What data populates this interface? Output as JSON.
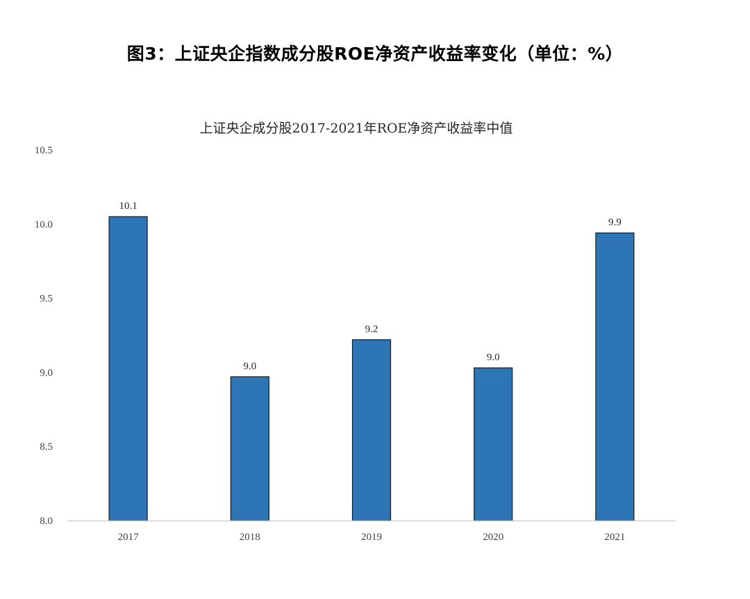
{
  "figure_title": "图3：上证央企指数成分股ROE净资产收益率变化（单位：%）",
  "chart_data": {
    "type": "bar",
    "title": "上证央企成分股2017-2021年ROE净资产收益率中值",
    "categories": [
      "2017",
      "2018",
      "2019",
      "2020",
      "2021"
    ],
    "values": [
      10.05,
      8.97,
      9.22,
      9.03,
      9.94
    ],
    "data_labels": [
      "10.1",
      "9.0",
      "9.2",
      "9.0",
      "9.9"
    ],
    "y_ticks": [
      "8.0",
      "8.5",
      "9.0",
      "9.5",
      "10.0",
      "10.5"
    ],
    "ylim": [
      8.0,
      10.5
    ],
    "xlabel": "",
    "ylabel": "",
    "grid": false,
    "legend": "none",
    "bar_color": "#2E75B6",
    "bar_edge_color": "#1a1a1a"
  }
}
